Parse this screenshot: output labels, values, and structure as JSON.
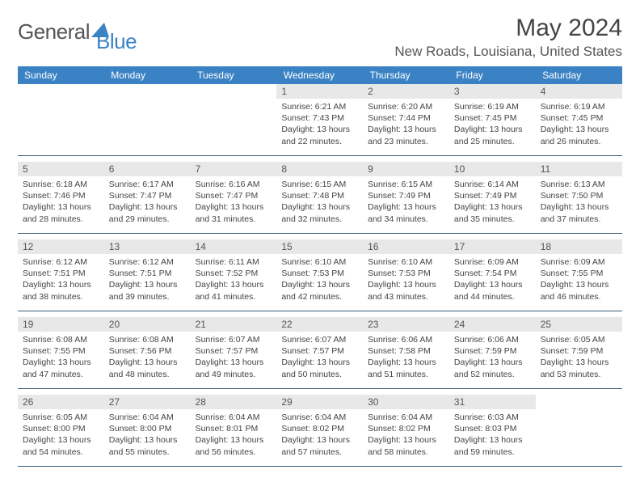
{
  "logo": {
    "text1": "General",
    "text2": "Blue"
  },
  "title": "May 2024",
  "location": "New Roads, Louisiana, United States",
  "colors": {
    "header_bg": "#3b82c4",
    "header_text": "#ffffff",
    "daynum_bg": "#e8e8e8",
    "border": "#345a7a"
  },
  "weekday_labels": [
    "Sunday",
    "Monday",
    "Tuesday",
    "Wednesday",
    "Thursday",
    "Friday",
    "Saturday"
  ],
  "weeks": [
    [
      {
        "n": "",
        "sunrise": "",
        "sunset": "",
        "daylight": ""
      },
      {
        "n": "",
        "sunrise": "",
        "sunset": "",
        "daylight": ""
      },
      {
        "n": "",
        "sunrise": "",
        "sunset": "",
        "daylight": ""
      },
      {
        "n": "1",
        "sunrise": "Sunrise: 6:21 AM",
        "sunset": "Sunset: 7:43 PM",
        "daylight": "Daylight: 13 hours and 22 minutes."
      },
      {
        "n": "2",
        "sunrise": "Sunrise: 6:20 AM",
        "sunset": "Sunset: 7:44 PM",
        "daylight": "Daylight: 13 hours and 23 minutes."
      },
      {
        "n": "3",
        "sunrise": "Sunrise: 6:19 AM",
        "sunset": "Sunset: 7:45 PM",
        "daylight": "Daylight: 13 hours and 25 minutes."
      },
      {
        "n": "4",
        "sunrise": "Sunrise: 6:19 AM",
        "sunset": "Sunset: 7:45 PM",
        "daylight": "Daylight: 13 hours and 26 minutes."
      }
    ],
    [
      {
        "n": "5",
        "sunrise": "Sunrise: 6:18 AM",
        "sunset": "Sunset: 7:46 PM",
        "daylight": "Daylight: 13 hours and 28 minutes."
      },
      {
        "n": "6",
        "sunrise": "Sunrise: 6:17 AM",
        "sunset": "Sunset: 7:47 PM",
        "daylight": "Daylight: 13 hours and 29 minutes."
      },
      {
        "n": "7",
        "sunrise": "Sunrise: 6:16 AM",
        "sunset": "Sunset: 7:47 PM",
        "daylight": "Daylight: 13 hours and 31 minutes."
      },
      {
        "n": "8",
        "sunrise": "Sunrise: 6:15 AM",
        "sunset": "Sunset: 7:48 PM",
        "daylight": "Daylight: 13 hours and 32 minutes."
      },
      {
        "n": "9",
        "sunrise": "Sunrise: 6:15 AM",
        "sunset": "Sunset: 7:49 PM",
        "daylight": "Daylight: 13 hours and 34 minutes."
      },
      {
        "n": "10",
        "sunrise": "Sunrise: 6:14 AM",
        "sunset": "Sunset: 7:49 PM",
        "daylight": "Daylight: 13 hours and 35 minutes."
      },
      {
        "n": "11",
        "sunrise": "Sunrise: 6:13 AM",
        "sunset": "Sunset: 7:50 PM",
        "daylight": "Daylight: 13 hours and 37 minutes."
      }
    ],
    [
      {
        "n": "12",
        "sunrise": "Sunrise: 6:12 AM",
        "sunset": "Sunset: 7:51 PM",
        "daylight": "Daylight: 13 hours and 38 minutes."
      },
      {
        "n": "13",
        "sunrise": "Sunrise: 6:12 AM",
        "sunset": "Sunset: 7:51 PM",
        "daylight": "Daylight: 13 hours and 39 minutes."
      },
      {
        "n": "14",
        "sunrise": "Sunrise: 6:11 AM",
        "sunset": "Sunset: 7:52 PM",
        "daylight": "Daylight: 13 hours and 41 minutes."
      },
      {
        "n": "15",
        "sunrise": "Sunrise: 6:10 AM",
        "sunset": "Sunset: 7:53 PM",
        "daylight": "Daylight: 13 hours and 42 minutes."
      },
      {
        "n": "16",
        "sunrise": "Sunrise: 6:10 AM",
        "sunset": "Sunset: 7:53 PM",
        "daylight": "Daylight: 13 hours and 43 minutes."
      },
      {
        "n": "17",
        "sunrise": "Sunrise: 6:09 AM",
        "sunset": "Sunset: 7:54 PM",
        "daylight": "Daylight: 13 hours and 44 minutes."
      },
      {
        "n": "18",
        "sunrise": "Sunrise: 6:09 AM",
        "sunset": "Sunset: 7:55 PM",
        "daylight": "Daylight: 13 hours and 46 minutes."
      }
    ],
    [
      {
        "n": "19",
        "sunrise": "Sunrise: 6:08 AM",
        "sunset": "Sunset: 7:55 PM",
        "daylight": "Daylight: 13 hours and 47 minutes."
      },
      {
        "n": "20",
        "sunrise": "Sunrise: 6:08 AM",
        "sunset": "Sunset: 7:56 PM",
        "daylight": "Daylight: 13 hours and 48 minutes."
      },
      {
        "n": "21",
        "sunrise": "Sunrise: 6:07 AM",
        "sunset": "Sunset: 7:57 PM",
        "daylight": "Daylight: 13 hours and 49 minutes."
      },
      {
        "n": "22",
        "sunrise": "Sunrise: 6:07 AM",
        "sunset": "Sunset: 7:57 PM",
        "daylight": "Daylight: 13 hours and 50 minutes."
      },
      {
        "n": "23",
        "sunrise": "Sunrise: 6:06 AM",
        "sunset": "Sunset: 7:58 PM",
        "daylight": "Daylight: 13 hours and 51 minutes."
      },
      {
        "n": "24",
        "sunrise": "Sunrise: 6:06 AM",
        "sunset": "Sunset: 7:59 PM",
        "daylight": "Daylight: 13 hours and 52 minutes."
      },
      {
        "n": "25",
        "sunrise": "Sunrise: 6:05 AM",
        "sunset": "Sunset: 7:59 PM",
        "daylight": "Daylight: 13 hours and 53 minutes."
      }
    ],
    [
      {
        "n": "26",
        "sunrise": "Sunrise: 6:05 AM",
        "sunset": "Sunset: 8:00 PM",
        "daylight": "Daylight: 13 hours and 54 minutes."
      },
      {
        "n": "27",
        "sunrise": "Sunrise: 6:04 AM",
        "sunset": "Sunset: 8:00 PM",
        "daylight": "Daylight: 13 hours and 55 minutes."
      },
      {
        "n": "28",
        "sunrise": "Sunrise: 6:04 AM",
        "sunset": "Sunset: 8:01 PM",
        "daylight": "Daylight: 13 hours and 56 minutes."
      },
      {
        "n": "29",
        "sunrise": "Sunrise: 6:04 AM",
        "sunset": "Sunset: 8:02 PM",
        "daylight": "Daylight: 13 hours and 57 minutes."
      },
      {
        "n": "30",
        "sunrise": "Sunrise: 6:04 AM",
        "sunset": "Sunset: 8:02 PM",
        "daylight": "Daylight: 13 hours and 58 minutes."
      },
      {
        "n": "31",
        "sunrise": "Sunrise: 6:03 AM",
        "sunset": "Sunset: 8:03 PM",
        "daylight": "Daylight: 13 hours and 59 minutes."
      },
      {
        "n": "",
        "sunrise": "",
        "sunset": "",
        "daylight": ""
      }
    ]
  ]
}
